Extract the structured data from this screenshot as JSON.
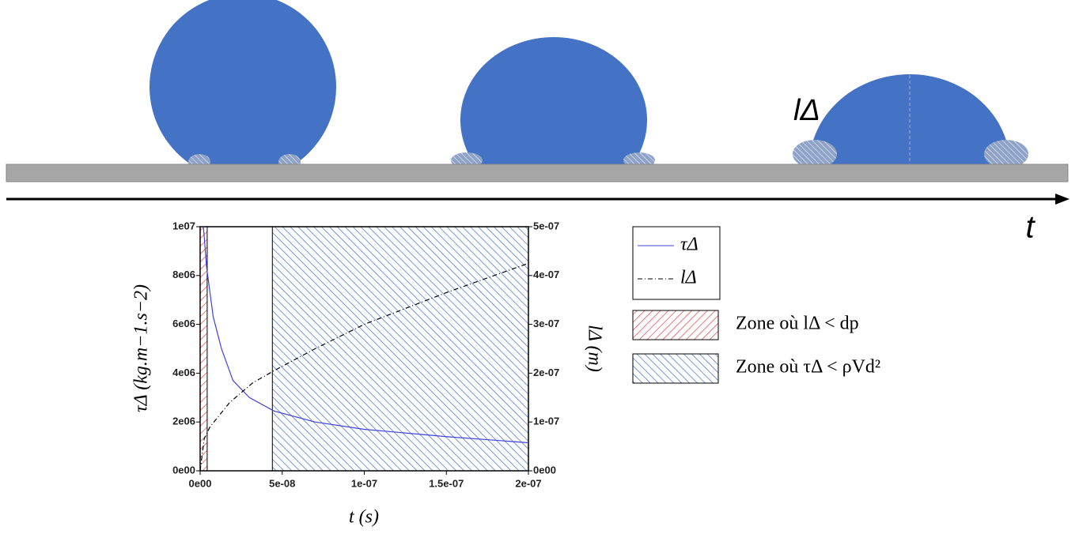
{
  "illustration": {
    "label": "lΔ",
    "axis_label": "t"
  },
  "chart_data": {
    "type": "line",
    "x_label": "t (s)",
    "y_label": "τΔ (kg.m−1.s−2)",
    "y2_label": "lΔ (m)",
    "xlim": [
      0,
      2e-07
    ],
    "xticks": [
      {
        "value": 0,
        "label": "0e00"
      },
      {
        "value": 5e-08,
        "label": "5e-08"
      },
      {
        "value": 1e-07,
        "label": "1e-07"
      },
      {
        "value": 1.5e-07,
        "label": "1.5e-07"
      },
      {
        "value": 2e-07,
        "label": "2e-07"
      }
    ],
    "ylim": [
      0,
      10000000
    ],
    "yticks": [
      {
        "value": 0,
        "label": "0e00"
      },
      {
        "value": 2000000,
        "label": "2e06"
      },
      {
        "value": 4000000,
        "label": "4e06"
      },
      {
        "value": 6000000,
        "label": "6e06"
      },
      {
        "value": 8000000,
        "label": "8e06"
      },
      {
        "value": 10000000,
        "label": "1e07"
      }
    ],
    "y2lim": [
      0,
      5e-07
    ],
    "y2ticks": [
      {
        "value": 0,
        "label": "0e00"
      },
      {
        "value": 1e-07,
        "label": "1e-07"
      },
      {
        "value": 2e-07,
        "label": "2e-07"
      },
      {
        "value": 3e-07,
        "label": "3e-07"
      },
      {
        "value": 4e-07,
        "label": "4e-07"
      },
      {
        "value": 5e-07,
        "label": "5e-07"
      }
    ],
    "series": [
      {
        "name": "τΔ",
        "color": "#4040e0",
        "dash": "none",
        "x": [
          2e-09,
          4e-09,
          8e-09,
          1.3e-08,
          2e-08,
          3e-08,
          4.5e-08,
          7e-08,
          1e-07,
          1.5e-07,
          2e-07
        ],
        "values": [
          10000000,
          8300000,
          6300000,
          5000000,
          3700000,
          3000000,
          2450000,
          2000000,
          1700000,
          1400000,
          1150000
        ]
      },
      {
        "name": "lΔ",
        "color": "#000000",
        "dash": "6 3 1 3",
        "axis": "y2",
        "x": [
          0,
          2.5e-09,
          6e-09,
          1.8e-08,
          3.2e-08,
          4.5e-08,
          7e-08,
          1e-07,
          1.5e-07,
          2e-07
        ],
        "values": [
          0,
          6.6e-08,
          9e-08,
          1.4e-07,
          1.8e-07,
          2.05e-07,
          2.5e-07,
          3e-07,
          3.65e-07,
          4.25e-07
        ]
      }
    ],
    "zones": [
      {
        "name": "Zone où lΔ < dp",
        "color": "#e05050",
        "x": [
          0,
          4.3e-09
        ]
      },
      {
        "name": "Zone où τΔ < ρVd²",
        "color": "#4a78c8",
        "x": [
          4.4e-08,
          2e-07
        ]
      }
    ]
  }
}
